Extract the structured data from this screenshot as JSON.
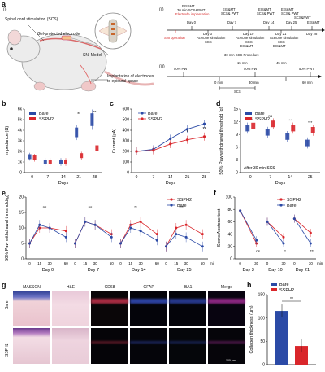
{
  "panels": {
    "a": "a",
    "b": "b",
    "c": "c",
    "d": "d",
    "e": "e",
    "f": "f",
    "g": "g",
    "h": "h"
  },
  "panel_a": {
    "part_i": "(i)",
    "part_ii": "(ii)",
    "part_iii": "(iii)",
    "scs_label": "Spinal cord stimulation (SCS)",
    "electrode_label": "Gel-protected electrode",
    "sni_label": "SNI Model",
    "implant_label": "Implantation of electrodes to epidural space",
    "timeline_top": [
      {
        "text": "EIS&MT"
      },
      {
        "text": "30 min SCS&PWT"
      },
      {
        "text": "Electrode implantation",
        "red": true
      },
      {
        "text": "EIS&MT"
      },
      {
        "text": "SCS& PWT"
      },
      {
        "text": "EIS&MT"
      },
      {
        "text": "SCS& PWT"
      },
      {
        "text": "EIS&MT"
      },
      {
        "text": "SCS& PWT"
      },
      {
        "text": "SCS&PWT"
      },
      {
        "text": "EIS&MT"
      }
    ],
    "days": [
      "Day 0",
      "Day 3",
      "Day 7",
      "Day 10",
      "Day 14",
      "Day 21",
      "Day 25",
      "Day 28"
    ],
    "sni_operation": "SNI operation",
    "timeline_bottom": [
      "Acetone simulation",
      "SCS",
      "Acetone simulation",
      "SCS",
      "EIS&MT",
      "Acetone simulation",
      "SCS",
      "EIS&MT"
    ],
    "procedure_title": "30 min SCS Procedure",
    "procedure": {
      "pwt": "50% PWT",
      "t0": "0 min",
      "t15": "15 min",
      "t30": "30 min",
      "t45": "45 min",
      "t60": "60 min",
      "scs": "SCS"
    }
  },
  "colors": {
    "bare": "#2b4aa6",
    "sspH2": "#d9262b"
  },
  "chart_data": [
    {
      "id": "b",
      "type": "box",
      "ylabel": "Impedance (Ω)",
      "xlabel": "Days",
      "categories": [
        "0",
        "7",
        "14",
        "21",
        "28"
      ],
      "yticks": [
        "0",
        "1k",
        "2k",
        "3k",
        "4k",
        "5k",
        "6k"
      ],
      "ylim": [
        0,
        6000
      ],
      "legend": [
        "Bare",
        "SSPH2"
      ],
      "series": [
        {
          "name": "Bare",
          "values": [
            1500,
            1000,
            1000,
            3800,
            5000
          ]
        },
        {
          "name": "SSPH2",
          "values": [
            1400,
            1000,
            1000,
            1600,
            2300
          ]
        }
      ],
      "annotations": [
        "**",
        "**"
      ]
    },
    {
      "id": "c",
      "type": "line",
      "ylabel": "Current (μA)",
      "xlabel": "Days",
      "categories": [
        "0",
        "7",
        "14",
        "21",
        "28"
      ],
      "yticks": [
        "0",
        "100",
        "200",
        "300",
        "400",
        "500",
        "600"
      ],
      "ylim": [
        0,
        600
      ],
      "legend": [
        "Bare",
        "SSPH2"
      ],
      "series": [
        {
          "name": "Bare",
          "values": [
            200,
            220,
            320,
            410,
            460
          ]
        },
        {
          "name": "SSPH2",
          "values": [
            200,
            210,
            270,
            310,
            340
          ]
        }
      ],
      "annotations": [
        "*",
        "**"
      ]
    },
    {
      "id": "d",
      "type": "box",
      "ylabel": "50% Paw withdrawal threshold (g)",
      "xlabel": "Days",
      "categories": [
        "0",
        "7",
        "14",
        "25"
      ],
      "yticks": [
        "0",
        "3",
        "6",
        "9",
        "12",
        "15"
      ],
      "ylim": [
        0,
        15
      ],
      "legend": [
        "Bare",
        "SSPH2"
      ],
      "note": "After 30 min SCS",
      "series": [
        {
          "name": "Bare",
          "values": [
            10.5,
            9.5,
            8.5,
            7.0
          ]
        },
        {
          "name": "SSPH2",
          "values": [
            11.0,
            11.5,
            10.5,
            10.0
          ]
        }
      ],
      "annotations": [
        "ns",
        "ns",
        "**",
        "***"
      ]
    },
    {
      "id": "e",
      "type": "line",
      "ylabel": "50% Paw withdrawal threshold(g)",
      "xlabel": "",
      "yticks": [
        "0",
        "5",
        "10",
        "15",
        "20"
      ],
      "ylim": [
        0,
        20
      ],
      "legend": [
        "SSPH2",
        "Bare"
      ],
      "groups": [
        "Day 0",
        "Day 7",
        "Day 14",
        "Day 25"
      ],
      "xticks": [
        "0",
        "15",
        "30",
        "60",
        "0",
        "15",
        "30",
        "60",
        "0",
        "15",
        "30",
        "60",
        "0",
        "15",
        "30",
        "60"
      ],
      "xunit": "min",
      "series": [
        {
          "name": "SSPH2",
          "values": [
            5,
            10,
            10,
            9,
            5,
            12,
            11,
            8,
            5,
            11,
            12,
            8,
            4,
            10,
            11,
            8
          ]
        },
        {
          "name": "Bare",
          "values": [
            5,
            11,
            10,
            7,
            5,
            12,
            11,
            7,
            5,
            10,
            9,
            6,
            4,
            8,
            7,
            4
          ]
        }
      ],
      "annotations": [
        "ns",
        "ns",
        "**",
        "***"
      ]
    },
    {
      "id": "f",
      "type": "line",
      "ylabel": "Score/Acetone test",
      "xlabel": "",
      "yticks": [
        "0",
        "20",
        "40",
        "60",
        "80",
        "100"
      ],
      "ylim": [
        0,
        100
      ],
      "legend": [
        "SSPH2",
        "Bare"
      ],
      "groups": [
        "Day 3",
        "Day 10",
        "Day 21"
      ],
      "xticks": [
        "0",
        "30",
        "0",
        "30",
        "0",
        "30"
      ],
      "xunit": "min",
      "series": [
        {
          "name": "SSPH2",
          "values": [
            78,
            25,
            60,
            35,
            65,
            42
          ]
        },
        {
          "name": "Bare",
          "values": [
            78,
            30,
            60,
            25,
            65,
            25
          ]
        }
      ],
      "annotations": [
        "ns",
        "*",
        "***"
      ]
    },
    {
      "id": "h",
      "type": "bar",
      "ylabel": "Collagen thickness (μm)",
      "categories": [
        "Bare",
        "SSPH2"
      ],
      "yticks": [
        "0",
        "50",
        "100",
        "150"
      ],
      "ylim": [
        0,
        150
      ],
      "legend": [
        "Bare",
        "SSPH2"
      ],
      "values": [
        115,
        40
      ],
      "annotations": [
        "**"
      ]
    }
  ],
  "panel_g": {
    "columns": [
      "MASSON",
      "H&E",
      "CD68",
      "GFAP",
      "IBA1",
      "Merge"
    ],
    "rows": [
      "Bare",
      "SSPH2"
    ],
    "scale": "100 μm"
  }
}
